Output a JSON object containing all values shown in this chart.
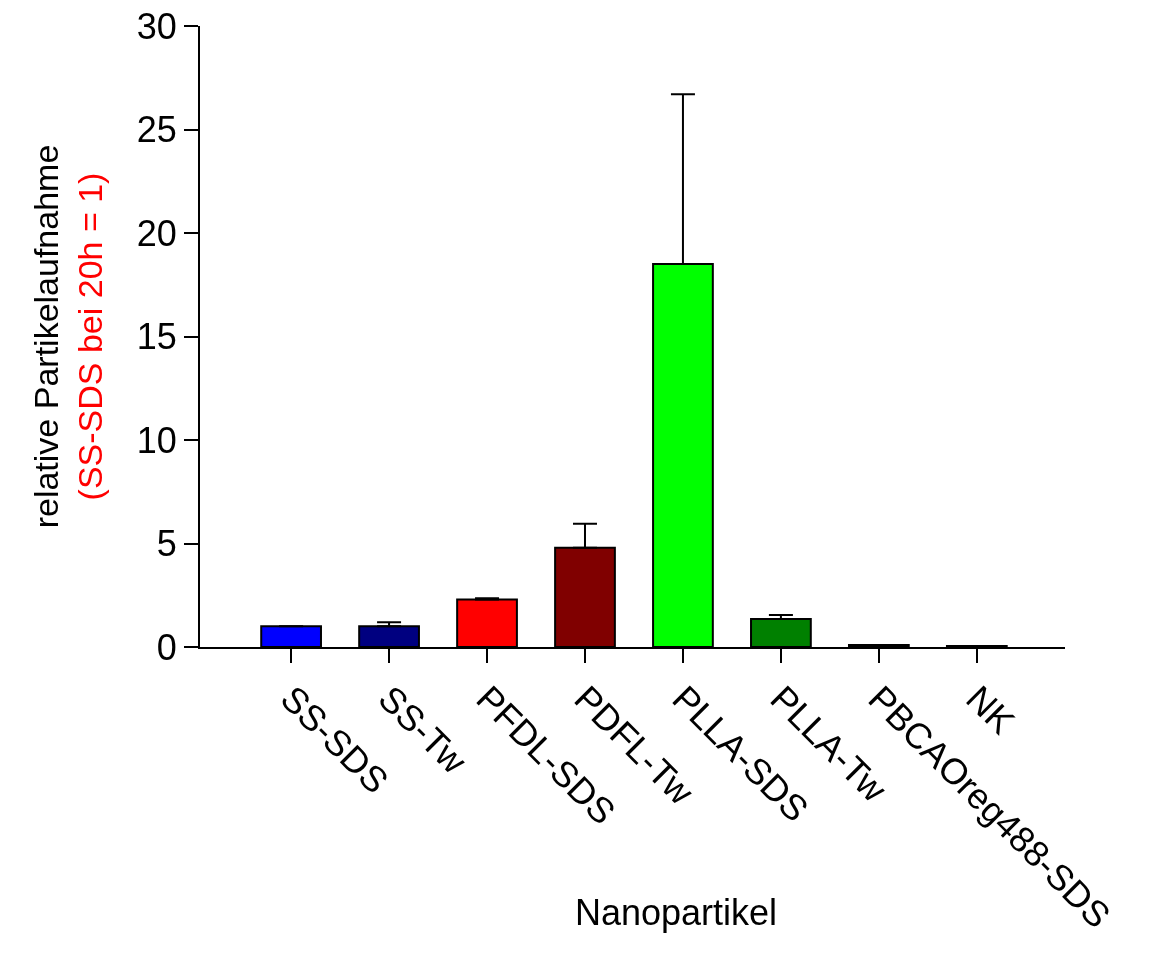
{
  "chart_data": {
    "type": "bar",
    "xlabel": "Nanopartikel",
    "ylabel": "relative Partikelaufnahme\n(SS-SDS bei 20h = 1)",
    "categories": [
      "SS-SDS",
      "SS-Tw",
      "PFDL-SDS",
      "PDFL-Tw",
      "PLLA-SDS",
      "PLLA-Tw",
      "PBCAOreg488-SDS",
      "NK"
    ],
    "values": [
      1.0,
      1.0,
      2.3,
      4.8,
      18.5,
      1.35,
      0.1,
      0.05
    ],
    "colors": [
      "#0000ff",
      "#000080",
      "#ff0000",
      "#800000",
      "#00ff00",
      "#008000",
      "#00ffff",
      "#000000"
    ],
    "errors": [
      null,
      [
        1.0,
        1.2
      ],
      [
        2.3,
        2.35
      ],
      [
        4.8,
        5.95
      ],
      [
        18.5,
        26.7
      ],
      [
        1.35,
        1.55
      ],
      null,
      null
    ],
    "ylim": [
      0,
      30
    ],
    "yticks": [
      0,
      5,
      10,
      15,
      20,
      25,
      30
    ],
    "grid": false,
    "legend": false
  }
}
